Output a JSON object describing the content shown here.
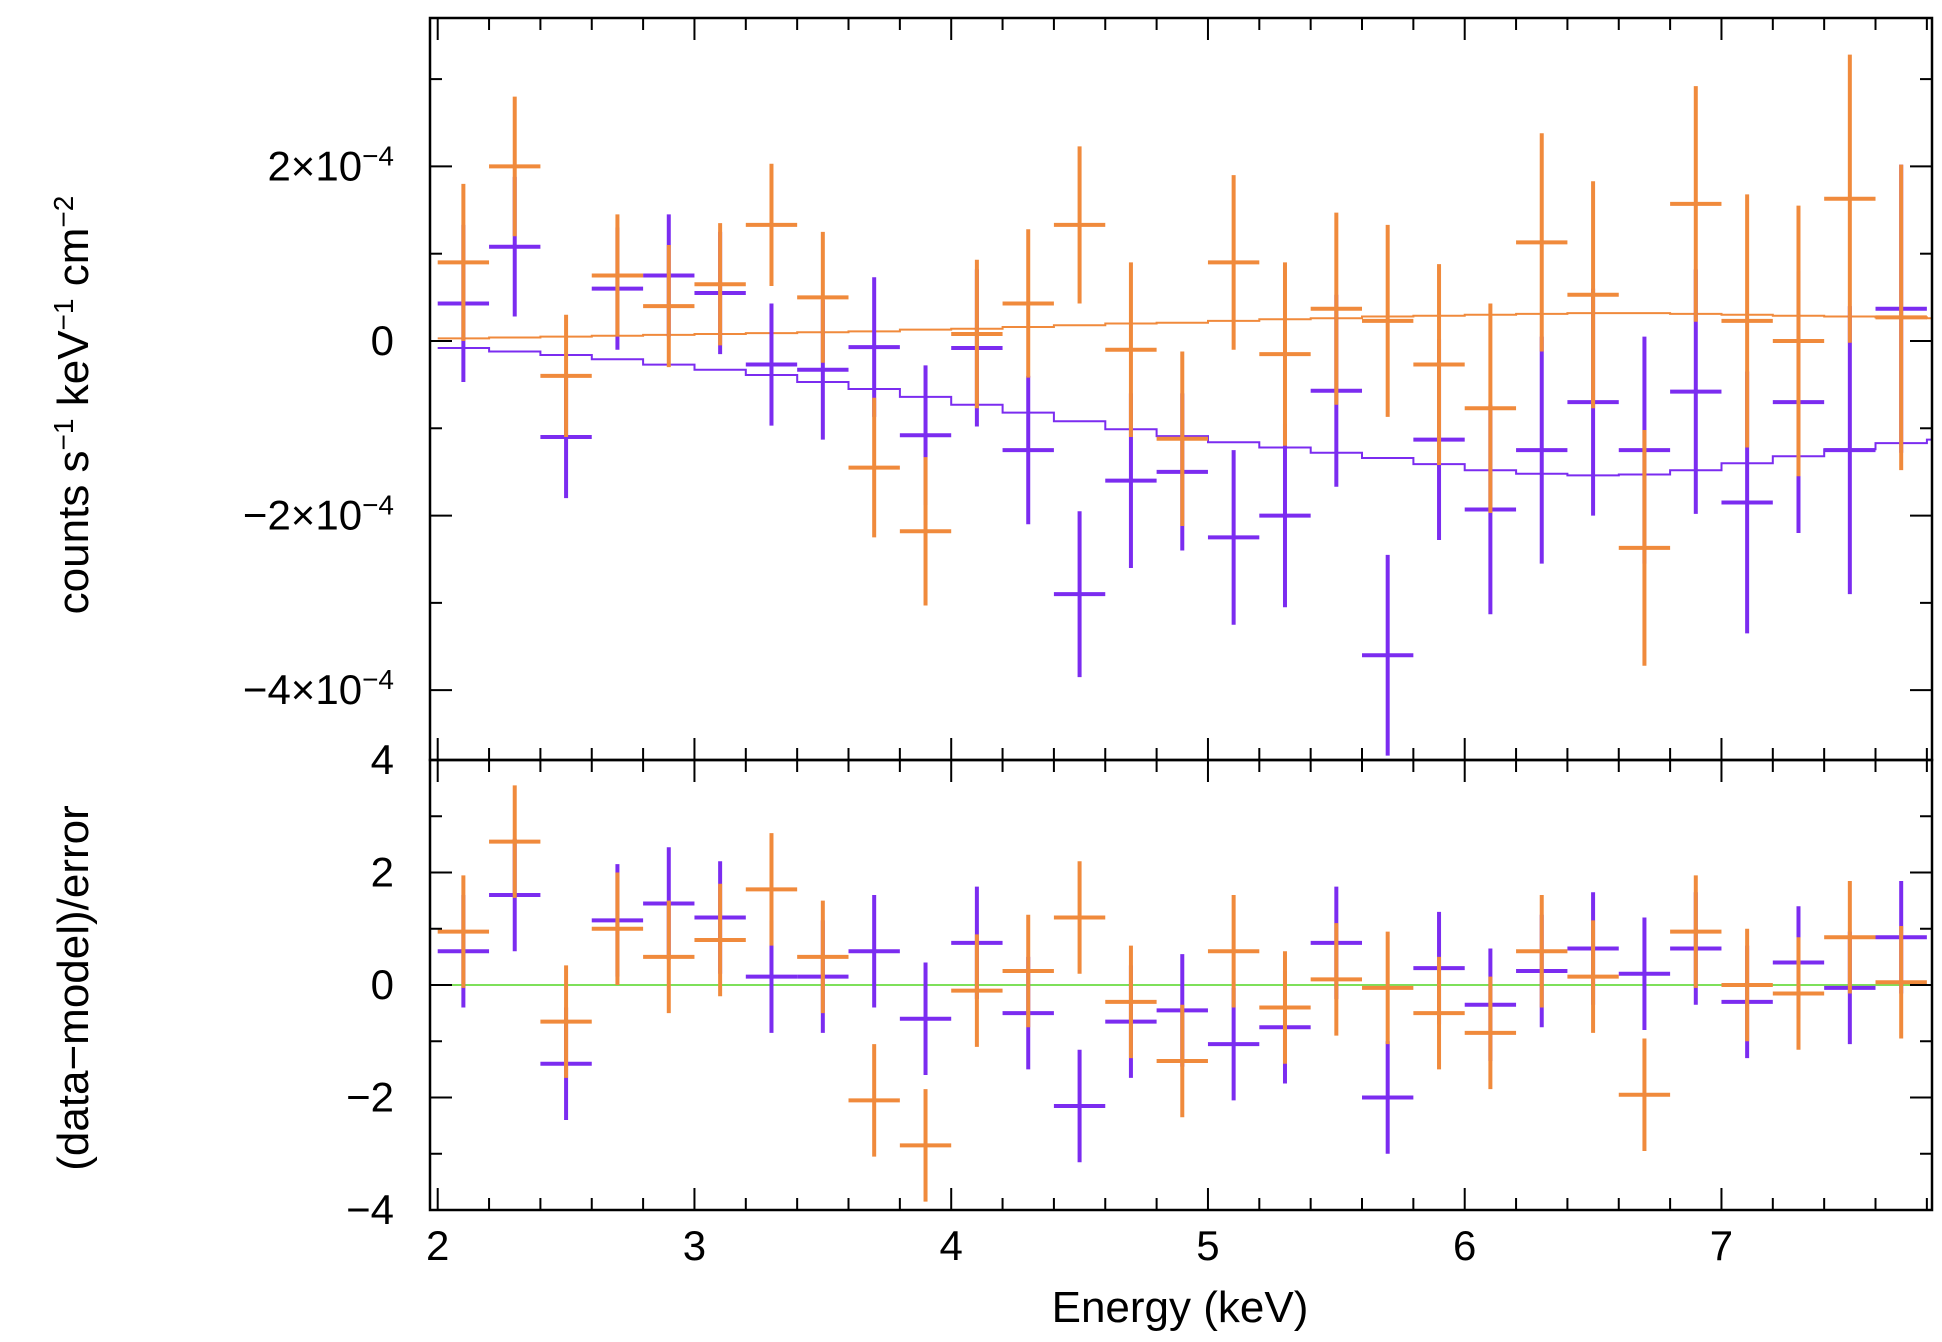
{
  "chart_data": [
    {
      "type": "scatter",
      "panel": "spectrum",
      "ylabel_parts": {
        "base": "counts s",
        "exp1": "−1",
        "mid": " keV",
        "exp2": "−1",
        "mid2": " cm",
        "exp3": "−2"
      },
      "xlim": [
        1.97,
        7.82
      ],
      "ylim": [
        -0.00048,
        0.00037
      ],
      "y_tick_labels": [
        {
          "value": 0.0002,
          "mantissa": "2×10",
          "exp": "−4"
        },
        {
          "value": 0,
          "mantissa": "0",
          "exp": ""
        },
        {
          "value": -0.0002,
          "mantissa": "−2×10",
          "exp": "−4"
        },
        {
          "value": -0.0004,
          "mantissa": "−4×10",
          "exp": "−4"
        }
      ],
      "minor_y_ticks": [
        0.0003,
        0.0001,
        -0.0001,
        -0.0003
      ],
      "series": [
        {
          "name": "purple",
          "color": "#7b2cf0",
          "x": [
            2.1,
            2.3,
            2.5,
            2.7,
            2.9,
            3.1,
            3.3,
            3.5,
            3.7,
            3.9,
            4.1,
            4.3,
            4.5,
            4.7,
            4.9,
            5.1,
            5.3,
            5.5,
            5.7,
            5.9,
            6.1,
            6.3,
            6.5,
            6.7,
            6.9,
            7.1,
            7.3,
            7.5,
            7.7
          ],
          "xerr": 0.1,
          "y": [
            4.3e-05,
            0.000108,
            -0.00011,
            6e-05,
            7.5e-05,
            5.5e-05,
            -2.7e-05,
            -3.3e-05,
            -7e-06,
            -0.000108,
            -8e-06,
            -0.000125,
            -0.00029,
            -0.00016,
            -0.00015,
            -0.000225,
            -0.0002,
            -5.7e-05,
            -0.00036,
            -0.000113,
            -0.000193,
            -0.000125,
            -7e-05,
            -0.000125,
            -5.8e-05,
            -0.000185,
            -7e-05,
            -0.000125,
            3.7e-05
          ],
          "yerr": [
            9e-05,
            8e-05,
            7e-05,
            7e-05,
            7e-05,
            7e-05,
            7e-05,
            8e-05,
            8e-05,
            8e-05,
            9e-05,
            8.5e-05,
            9.5e-05,
            0.0001,
            9e-05,
            0.0001,
            0.000105,
            0.00011,
            0.000115,
            0.000115,
            0.00012,
            0.00013,
            0.00013,
            0.00013,
            0.00014,
            0.00015,
            0.00015,
            0.000165,
            0.000165
          ]
        },
        {
          "name": "orange",
          "color": "#f08a3c",
          "x": [
            2.1,
            2.3,
            2.5,
            2.7,
            2.9,
            3.1,
            3.3,
            3.5,
            3.7,
            3.9,
            4.1,
            4.3,
            4.5,
            4.7,
            4.9,
            5.1,
            5.3,
            5.5,
            5.7,
            5.9,
            6.1,
            6.3,
            6.5,
            6.7,
            6.9,
            7.1,
            7.3,
            7.5,
            7.7
          ],
          "xerr": 0.1,
          "y": [
            9e-05,
            0.0002,
            -4e-05,
            7.5e-05,
            4e-05,
            6.5e-05,
            0.000133,
            5e-05,
            -0.000145,
            -0.000218,
            8e-06,
            4.3e-05,
            0.000133,
            -1e-05,
            -0.000112,
            9e-05,
            -1.5e-05,
            3.7e-05,
            2.3e-05,
            -2.7e-05,
            -7.7e-05,
            0.000113,
            5.3e-05,
            -0.000237,
            0.000157,
            2.3e-05,
            0.0,
            0.000163,
            2.7e-05
          ],
          "yerr": [
            9e-05,
            8e-05,
            7e-05,
            7e-05,
            7e-05,
            7e-05,
            7e-05,
            7.5e-05,
            8e-05,
            8.5e-05,
            8.5e-05,
            8.5e-05,
            9e-05,
            0.0001,
            0.0001,
            0.0001,
            0.000105,
            0.00011,
            0.00011,
            0.000115,
            0.00012,
            0.000125,
            0.00013,
            0.000135,
            0.000135,
            0.000145,
            0.000155,
            0.000165,
            0.000175
          ]
        }
      ],
      "models": [
        {
          "name": "purple-model",
          "color": "#7b2cf0",
          "x": [
            2.0,
            2.2,
            2.4,
            2.6,
            2.8,
            3.0,
            3.2,
            3.4,
            3.6,
            3.8,
            4.0,
            4.2,
            4.4,
            4.6,
            4.8,
            5.0,
            5.2,
            5.4,
            5.6,
            5.8,
            6.0,
            6.2,
            6.4,
            6.6,
            6.8,
            7.0,
            7.2,
            7.4,
            7.6,
            7.8
          ],
          "y": [
            -8e-06,
            -1.2e-05,
            -1.6e-05,
            -2.1e-05,
            -2.7e-05,
            -3.3e-05,
            -3.9e-05,
            -4.7e-05,
            -5.5e-05,
            -6.4e-05,
            -7.3e-05,
            -8.2e-05,
            -9.2e-05,
            -0.000101,
            -0.000109,
            -0.000116,
            -0.000122,
            -0.000128,
            -0.000134,
            -0.000141,
            -0.000148,
            -0.000152,
            -0.000154,
            -0.000153,
            -0.000148,
            -0.00014,
            -0.000132,
            -0.000124,
            -0.000117,
            -0.000113
          ]
        },
        {
          "name": "orange-model",
          "color": "#f08a3c",
          "x": [
            2.0,
            2.2,
            2.4,
            2.6,
            2.8,
            3.0,
            3.2,
            3.4,
            3.6,
            3.8,
            4.0,
            4.2,
            4.4,
            4.6,
            4.8,
            5.0,
            5.2,
            5.4,
            5.6,
            5.8,
            6.0,
            6.2,
            6.4,
            6.6,
            6.8,
            7.0,
            7.2,
            7.4,
            7.6,
            7.8
          ],
          "y": [
            3e-06,
            4e-06,
            5e-06,
            6e-06,
            7e-06,
            8e-06,
            9e-06,
            1e-05,
            1.1e-05,
            1.3e-05,
            1.4e-05,
            1.6e-05,
            1.8e-05,
            2e-05,
            2.1e-05,
            2.3e-05,
            2.5e-05,
            2.6e-05,
            2.8e-05,
            2.9e-05,
            3e-05,
            3.1e-05,
            3.2e-05,
            3.2e-05,
            3.1e-05,
            3e-05,
            2.9e-05,
            2.8e-05,
            2.7e-05,
            2.6e-05
          ]
        }
      ]
    },
    {
      "type": "scatter",
      "panel": "residuals",
      "xlabel": "Energy (keV)",
      "ylabel": "(data−model)/error",
      "xlim": [
        1.97,
        7.82
      ],
      "ylim": [
        -4,
        4
      ],
      "x_tick_labels": [
        "2",
        "3",
        "4",
        "5",
        "6",
        "7"
      ],
      "y_tick_labels": [
        "4",
        "2",
        "0",
        "−2",
        "−4"
      ],
      "zero_line_color": "#7ee05a",
      "series": [
        {
          "name": "purple",
          "color": "#7b2cf0",
          "x": [
            2.1,
            2.3,
            2.5,
            2.7,
            2.9,
            3.1,
            3.3,
            3.5,
            3.7,
            3.9,
            4.1,
            4.3,
            4.5,
            4.7,
            4.9,
            5.1,
            5.3,
            5.5,
            5.7,
            5.9,
            6.1,
            6.3,
            6.5,
            6.7,
            6.9,
            7.1,
            7.3,
            7.5,
            7.7
          ],
          "xerr": 0.1,
          "y": [
            0.6,
            1.6,
            -1.4,
            1.15,
            1.45,
            1.2,
            0.15,
            0.15,
            0.6,
            -0.6,
            0.75,
            -0.5,
            -2.15,
            -0.65,
            -0.45,
            -1.05,
            -0.75,
            0.75,
            -2.0,
            0.3,
            -0.35,
            0.25,
            0.65,
            0.2,
            0.65,
            -0.3,
            0.4,
            -0.05,
            0.85
          ],
          "yerr": [
            1,
            1,
            1,
            1,
            1,
            1,
            1,
            1,
            1,
            1,
            1,
            1,
            1,
            1,
            1,
            1,
            1,
            1,
            1,
            1,
            1,
            1,
            1,
            1,
            1,
            1,
            1,
            1,
            1
          ]
        },
        {
          "name": "orange",
          "color": "#f08a3c",
          "x": [
            2.1,
            2.3,
            2.5,
            2.7,
            2.9,
            3.1,
            3.3,
            3.5,
            3.7,
            3.9,
            4.1,
            4.3,
            4.5,
            4.7,
            4.9,
            5.1,
            5.3,
            5.5,
            5.7,
            5.9,
            6.1,
            6.3,
            6.5,
            6.7,
            6.9,
            7.1,
            7.3,
            7.5,
            7.7
          ],
          "xerr": 0.1,
          "y": [
            0.95,
            2.55,
            -0.65,
            1.0,
            0.5,
            0.8,
            1.7,
            0.5,
            -2.05,
            -2.85,
            -0.1,
            0.25,
            1.2,
            -0.3,
            -1.35,
            0.6,
            -0.4,
            0.1,
            -0.05,
            -0.5,
            -0.85,
            0.6,
            0.15,
            -1.95,
            0.95,
            0.0,
            -0.15,
            0.85,
            0.05
          ],
          "yerr": [
            1,
            1,
            1,
            1,
            1,
            1,
            1,
            1,
            1,
            1,
            1,
            1,
            1,
            1,
            1,
            1,
            1,
            1,
            1,
            1,
            1,
            1,
            1,
            1,
            1,
            1,
            1,
            1,
            1
          ]
        }
      ]
    }
  ]
}
